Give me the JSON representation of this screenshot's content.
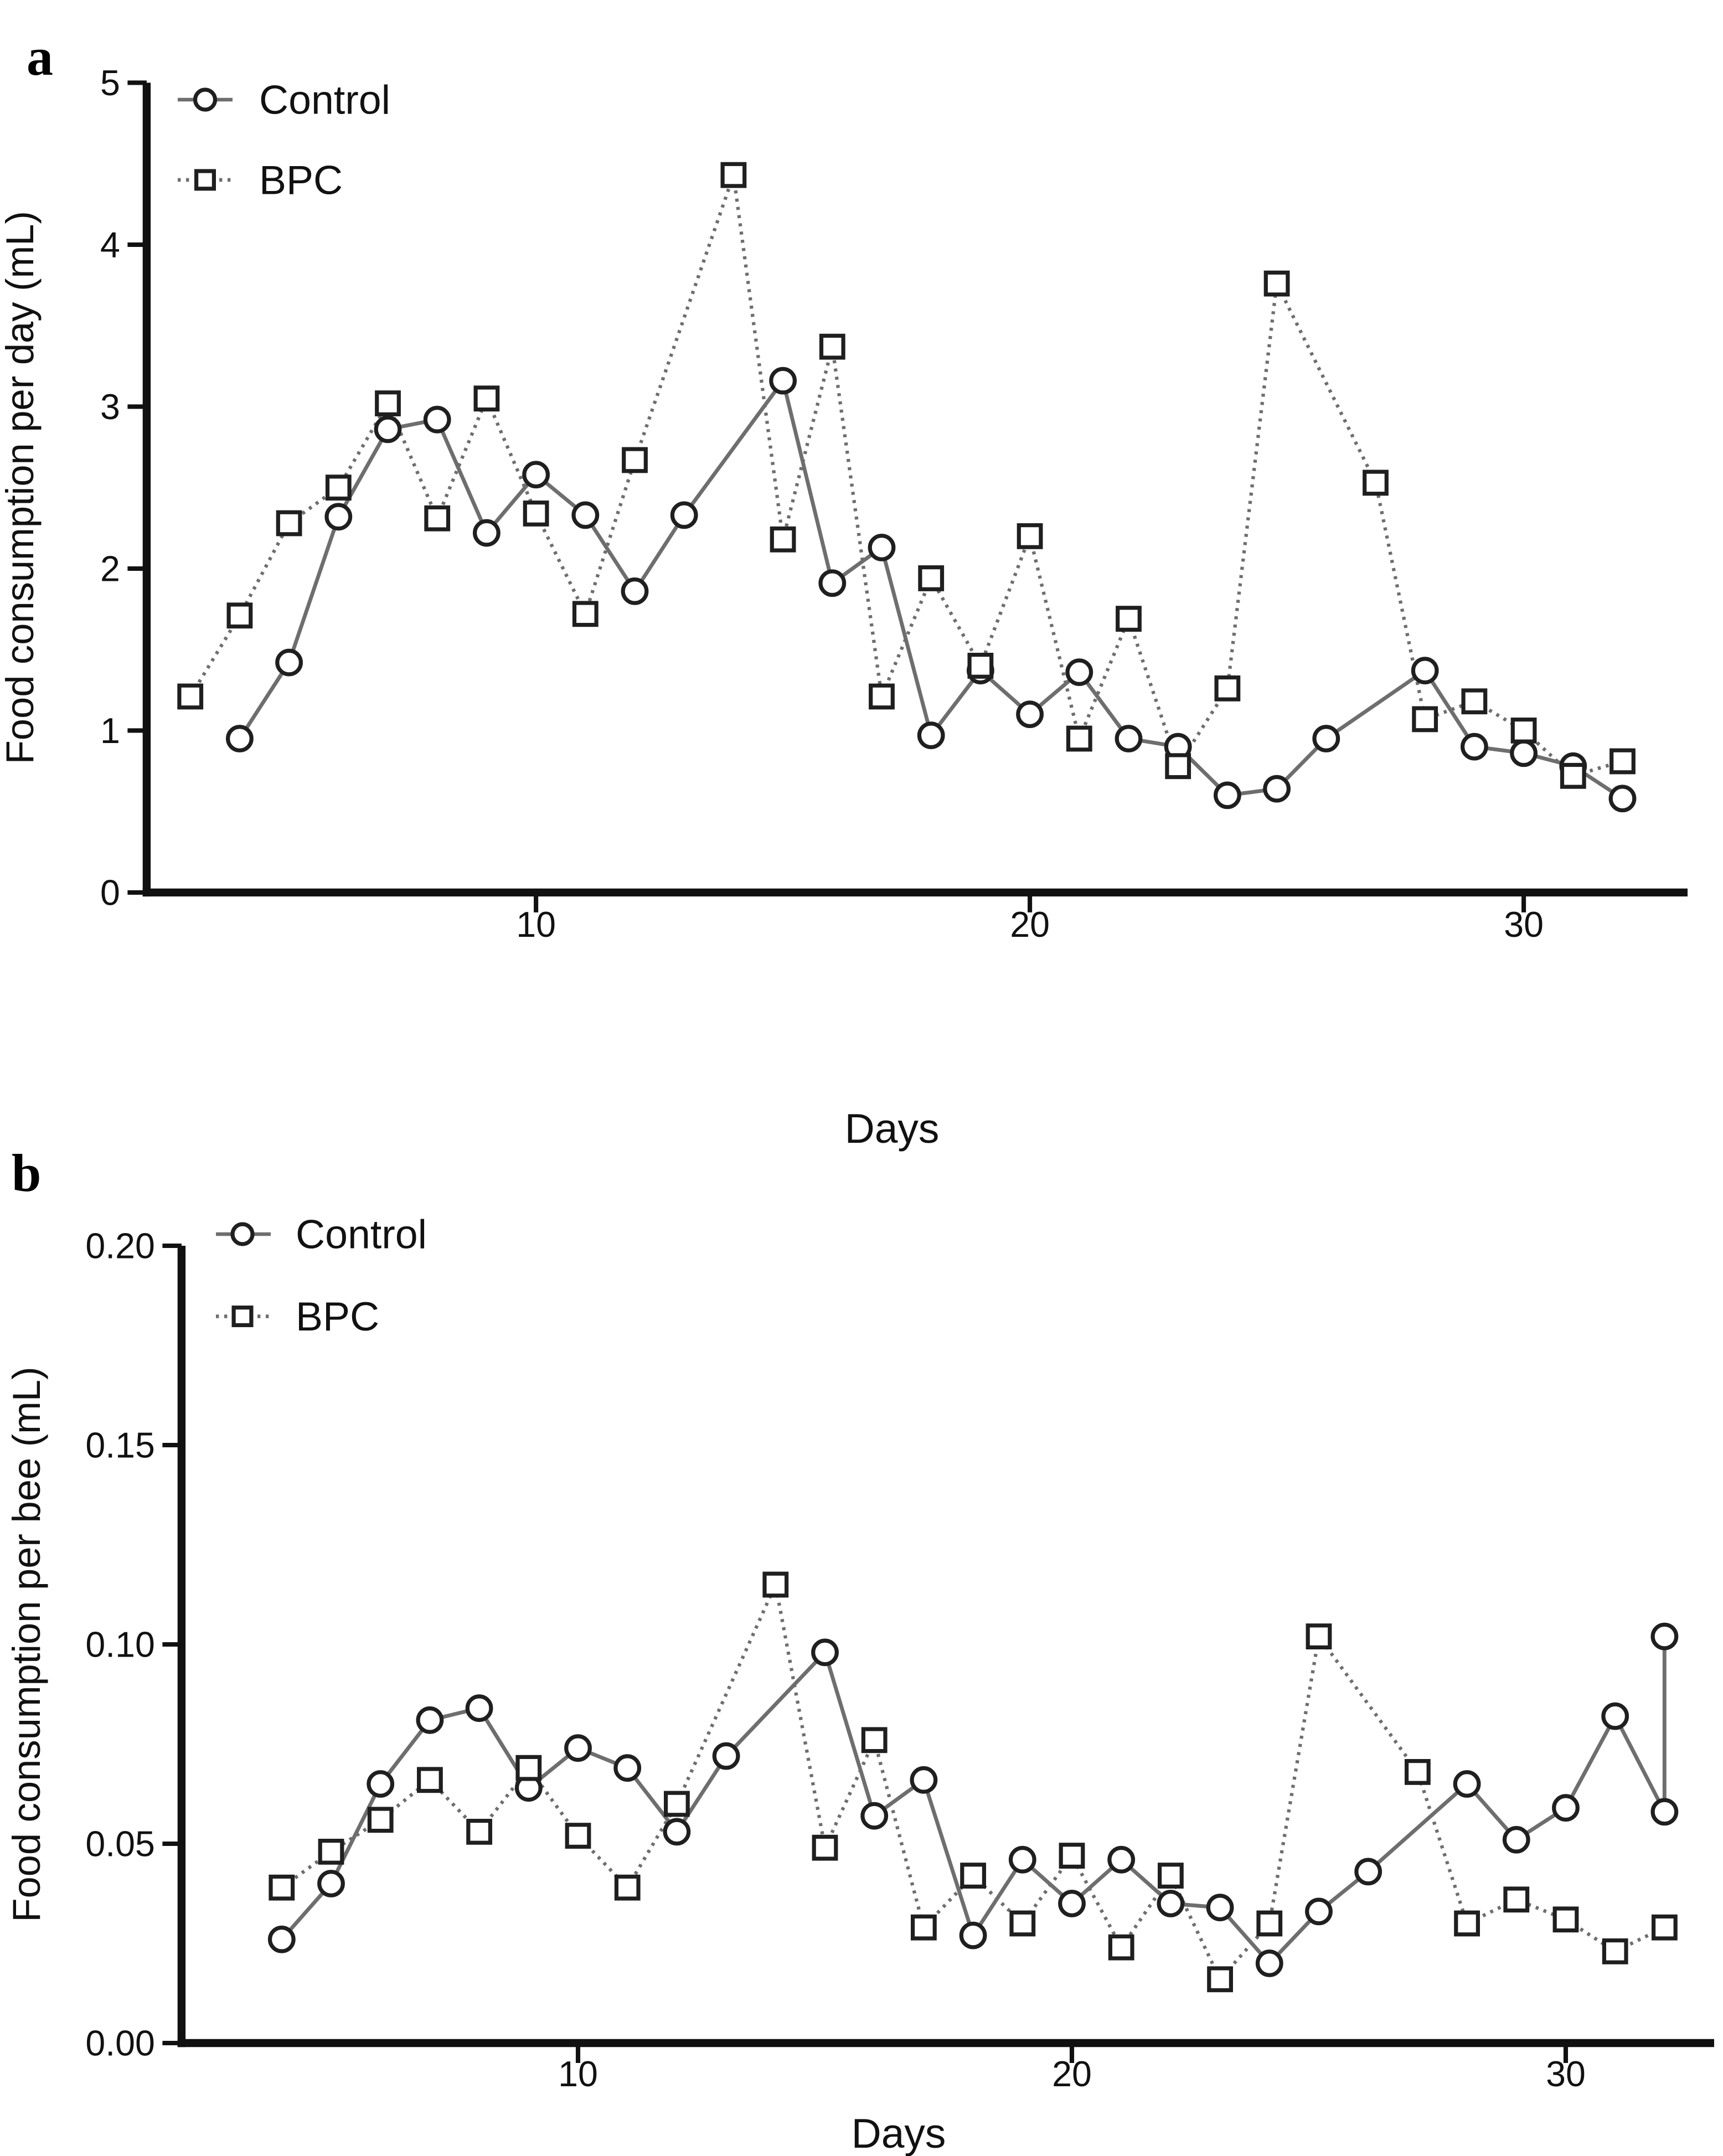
{
  "colors": {
    "background": "#ffffff",
    "axis": "#111111",
    "text": "#111111",
    "series_line": "#6e6e6e",
    "marker_stroke": "#1f1f1f",
    "marker_fill": "#ffffff"
  },
  "chart_data": [
    {
      "type": "line",
      "panel_label": "a",
      "xlabel": "Days",
      "ylabel": "Food consumption per day (mL)",
      "xlim": [
        2.05,
        33.25
      ],
      "ylim": [
        0,
        5
      ],
      "grid": false,
      "legend_position": "top-left-inside",
      "xticks": [
        {
          "value": 10,
          "label": "10"
        },
        {
          "value": 20,
          "label": "20"
        },
        {
          "value": 30,
          "label": "30"
        }
      ],
      "yticks": [
        {
          "value": 0,
          "label": "0"
        },
        {
          "value": 1,
          "label": "1"
        },
        {
          "value": 2,
          "label": "2"
        },
        {
          "value": 3,
          "label": "3"
        },
        {
          "value": 4,
          "label": "4"
        },
        {
          "value": 5,
          "label": "5"
        }
      ],
      "series": [
        {
          "name": "Control",
          "marker": "circle",
          "line_style": "solid",
          "points": [
            [
              4,
              0.95
            ],
            [
              5,
              1.42
            ],
            [
              6,
              2.32
            ],
            [
              7,
              2.86
            ],
            [
              8,
              2.92
            ],
            [
              9,
              2.22
            ],
            [
              10,
              2.58
            ],
            [
              11,
              2.33
            ],
            [
              12,
              1.86
            ],
            [
              13,
              2.33
            ],
            [
              15,
              3.16
            ],
            [
              16,
              1.91
            ],
            [
              17,
              2.13
            ],
            [
              18,
              0.97
            ],
            [
              19,
              1.37
            ],
            [
              20,
              1.1
            ],
            [
              21,
              1.36
            ],
            [
              22,
              0.95
            ],
            [
              23,
              0.9
            ],
            [
              24,
              0.6
            ],
            [
              25,
              0.64
            ],
            [
              26,
              0.95
            ],
            [
              28,
              1.37
            ],
            [
              29,
              0.9
            ],
            [
              30,
              0.86
            ],
            [
              31,
              0.78
            ],
            [
              32,
              0.58
            ]
          ]
        },
        {
          "name": "BPC",
          "marker": "square",
          "line_style": "dotted",
          "points": [
            [
              3,
              1.21
            ],
            [
              4,
              1.71
            ],
            [
              5,
              2.28
            ],
            [
              6,
              2.5
            ],
            [
              7,
              3.02
            ],
            [
              8,
              2.31
            ],
            [
              9,
              3.05
            ],
            [
              10,
              2.34
            ],
            [
              11,
              1.72
            ],
            [
              12,
              2.67
            ],
            [
              14,
              4.43
            ],
            [
              15,
              2.18
            ],
            [
              16,
              3.37
            ],
            [
              17,
              1.21
            ],
            [
              18,
              1.94
            ],
            [
              19,
              1.4
            ],
            [
              20,
              2.2
            ],
            [
              21,
              0.95
            ],
            [
              22,
              1.69
            ],
            [
              23,
              0.78
            ],
            [
              24,
              1.26
            ],
            [
              25,
              3.76
            ],
            [
              27,
              2.53
            ],
            [
              28,
              1.07
            ],
            [
              29,
              1.18
            ],
            [
              30,
              1.0
            ],
            [
              31,
              0.72
            ],
            [
              32,
              0.81
            ]
          ]
        }
      ]
    },
    {
      "type": "line",
      "panel_label": "b",
      "xlabel": "Days",
      "ylabel": "Food consumption per bee (mL)",
      "xlim": [
        1.97,
        33.0
      ],
      "ylim": [
        0,
        0.2
      ],
      "grid": false,
      "legend_position": "top-left-inside",
      "xticks": [
        {
          "value": 10,
          "label": "10"
        },
        {
          "value": 20,
          "label": "20"
        },
        {
          "value": 30,
          "label": "30"
        }
      ],
      "yticks": [
        {
          "value": 0,
          "label": "0.00"
        },
        {
          "value": 0.05,
          "label": "0.05"
        },
        {
          "value": 0.1,
          "label": "0.10"
        },
        {
          "value": 0.15,
          "label": "0.15"
        },
        {
          "value": 0.2,
          "label": "0.20"
        }
      ],
      "series": [
        {
          "name": "Control",
          "marker": "circle",
          "line_style": "solid",
          "points": [
            [
              4,
              0.026
            ],
            [
              5,
              0.04
            ],
            [
              6,
              0.065
            ],
            [
              7,
              0.081
            ],
            [
              8,
              0.084
            ],
            [
              9,
              0.064
            ],
            [
              10,
              0.074
            ],
            [
              11,
              0.069
            ],
            [
              12,
              0.053
            ],
            [
              13,
              0.072
            ],
            [
              15,
              0.098
            ],
            [
              16,
              0.057
            ],
            [
              17,
              0.066
            ],
            [
              18,
              0.027
            ],
            [
              19,
              0.046
            ],
            [
              20,
              0.035
            ],
            [
              21,
              0.046
            ],
            [
              22,
              0.035
            ],
            [
              23,
              0.034
            ],
            [
              24,
              0.02
            ],
            [
              25,
              0.033
            ],
            [
              26,
              0.043
            ],
            [
              28,
              0.065
            ],
            [
              29,
              0.051
            ],
            [
              30,
              0.059
            ],
            [
              31,
              0.082
            ],
            [
              32,
              0.058
            ],
            [
              32,
              0.102
            ]
          ]
        },
        {
          "name": "BPC",
          "marker": "square",
          "line_style": "dotted",
          "points": [
            [
              4,
              0.039
            ],
            [
              5,
              0.048
            ],
            [
              6,
              0.056
            ],
            [
              7,
              0.066
            ],
            [
              8,
              0.053
            ],
            [
              9,
              0.069
            ],
            [
              10,
              0.052
            ],
            [
              11,
              0.039
            ],
            [
              12,
              0.06
            ],
            [
              14,
              0.115
            ],
            [
              15,
              0.049
            ],
            [
              16,
              0.076
            ],
            [
              17,
              0.029
            ],
            [
              18,
              0.042
            ],
            [
              19,
              0.03
            ],
            [
              20,
              0.047
            ],
            [
              21,
              0.024
            ],
            [
              22,
              0.042
            ],
            [
              23,
              0.016
            ],
            [
              24,
              0.03
            ],
            [
              25,
              0.102
            ],
            [
              27,
              0.068
            ],
            [
              28,
              0.03
            ],
            [
              29,
              0.036
            ],
            [
              30,
              0.031
            ],
            [
              31,
              0.023
            ],
            [
              32,
              0.029
            ]
          ]
        }
      ]
    }
  ]
}
